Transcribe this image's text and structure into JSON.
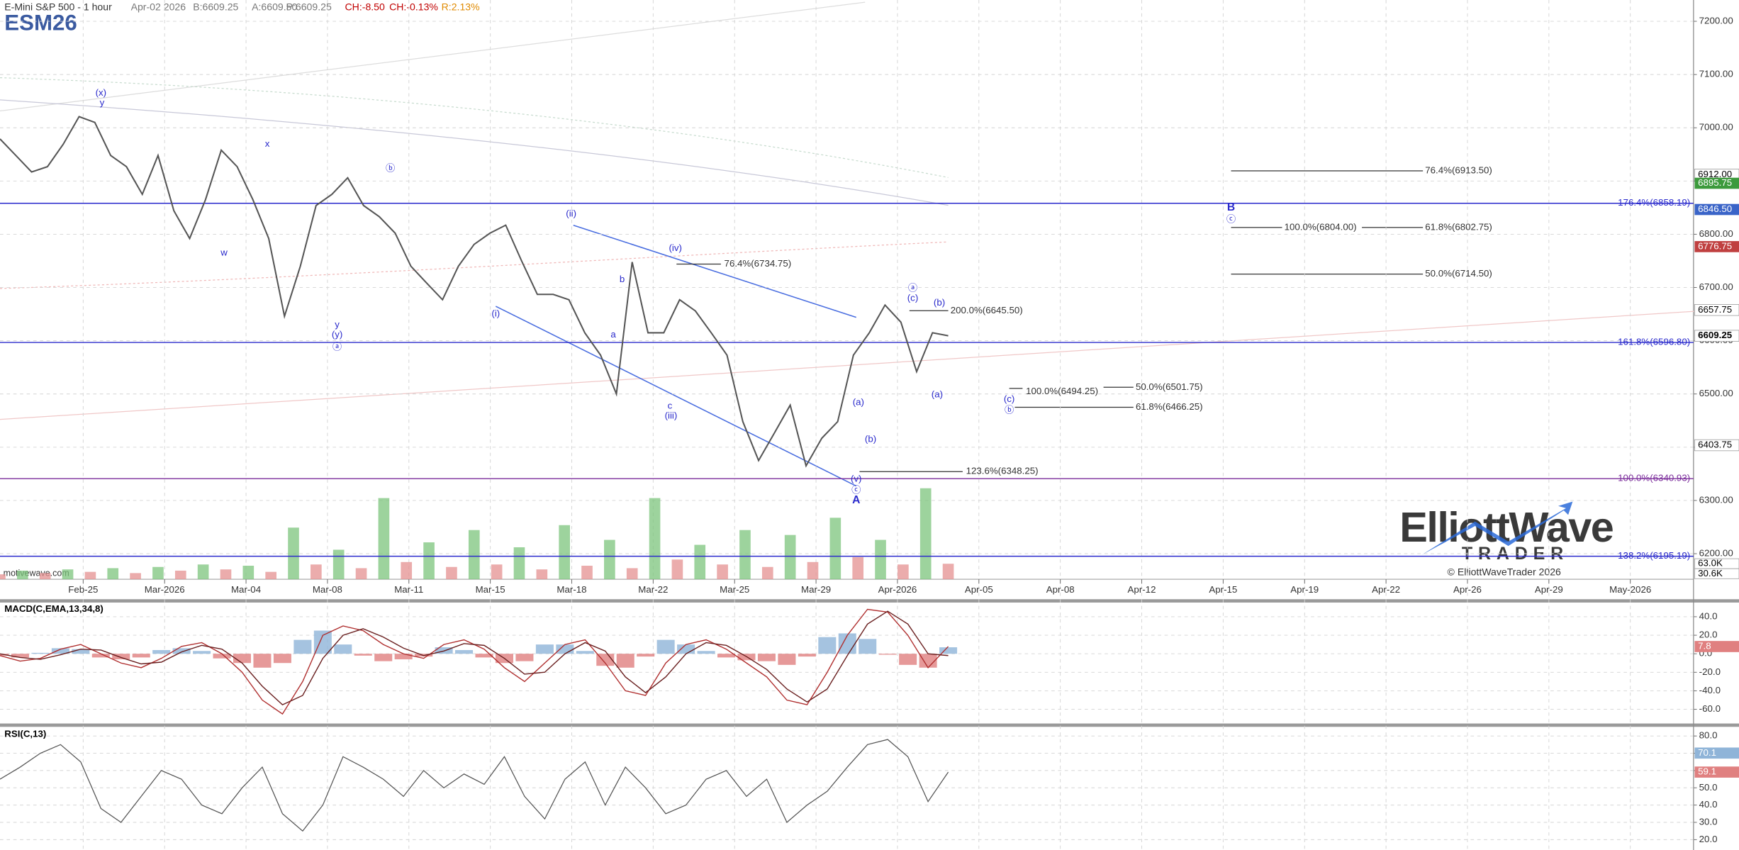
{
  "header": {
    "title": "E-Mini S&P 500 - 1 hour",
    "date": "Apr-02 2026",
    "bid": "B:6609.25",
    "ask": "A:6609.50",
    "price": "P:6609.25",
    "change": "CH:-8.50",
    "change_pct": "CH:-0.13%",
    "range": "R:2.13%",
    "symbol": "ESM26"
  },
  "footer": {
    "source": "motivewave.com",
    "copyright": "© ElliottWaveTrader 2026",
    "logo_top": "ElliottWave",
    "logo_bottom": "TRADER"
  },
  "chart_data": [
    {
      "type": "line",
      "x_labels": [
        "Feb-25",
        "Mar-2026",
        "Mar-04",
        "Mar-08",
        "Mar-11",
        "Mar-15",
        "Mar-18",
        "Mar-22",
        "Mar-25",
        "Mar-29",
        "Apr-2026",
        "Apr-05",
        "Apr-08",
        "Apr-12",
        "Apr-15",
        "Apr-19",
        "Apr-22",
        "Apr-26",
        "Apr-29",
        "May-2026"
      ],
      "series": [
        {
          "color": "#555555",
          "values": [
            6979,
            6948,
            6917,
            6927,
            6969,
            7021,
            7010,
            6948,
            6927,
            6875,
            6948,
            6844,
            6792,
            6865,
            6958,
            6927,
            6865,
            6792,
            6646,
            6740,
            6854,
            6875,
            6906,
            6854,
            6833,
            6802,
            6740,
            6708,
            6677,
            6740,
            6781,
            6802,
            6817,
            6750,
            6687,
            6687,
            6677,
            6615,
            6573,
            6500,
            6748,
            6615,
            6615,
            6677,
            6656,
            6615,
            6573,
            6448,
            6375,
            6427,
            6479,
            6365,
            6417,
            6448,
            6573,
            6615,
            6667,
            6635,
            6542,
            6615,
            6609.25
          ]
        }
      ],
      "ylim": [
        6152,
        7240
      ],
      "yticks": [
        {
          "value": 7200,
          "label": "7200.00"
        },
        {
          "value": 7100,
          "label": "7100.00"
        },
        {
          "value": 7000,
          "label": "7000.00"
        },
        {
          "value": 6900,
          "label": "6900.00"
        },
        {
          "value": 6800,
          "label": "6800.00"
        },
        {
          "value": 6700,
          "label": "6700.00"
        },
        {
          "value": 6600,
          "label": "6600.00"
        },
        {
          "value": 6500,
          "label": "6500.00"
        },
        {
          "value": 6400,
          "label": "6400.00"
        },
        {
          "value": 6300,
          "label": "6300.00"
        },
        {
          "value": 6200,
          "label": "6200.00"
        }
      ],
      "grid": true,
      "levels": [
        {
          "value": 6858.19,
          "label": "176.4%(6858.19)",
          "color": "#2a2acc"
        },
        {
          "value": 6596.8,
          "label": "161.8%(6596.80)",
          "color": "#2a2acc"
        },
        {
          "value": 6340.93,
          "label": "100.0%(6340.93)",
          "color": "#7b2d9b"
        },
        {
          "value": 6195.19,
          "label": "138.2%(6195.19)",
          "color": "#2a2acc"
        }
      ],
      "price_markers": [
        {
          "value": 6912,
          "label": "6912.00",
          "color": "#ffffff"
        },
        {
          "value": 6895.75,
          "label": "6895.75",
          "color": "#3c9a3c"
        },
        {
          "value": 6846.5,
          "label": "6846.50",
          "color": "#3a64c8"
        },
        {
          "value": 6776.75,
          "label": "6776.75",
          "color": "#c04040"
        },
        {
          "value": 6657.75,
          "label": "6657.75",
          "color": "#ffffff"
        },
        {
          "value": 6609.25,
          "label": "6609.25",
          "color": "#ffffff"
        },
        {
          "value": 6403.75,
          "label": "6403.75",
          "color": "#ffffff"
        }
      ],
      "volume": {
        "ylim": [
          0,
          370
        ],
        "values": [
          20,
          35,
          25,
          40,
          30,
          45,
          25,
          50,
          35,
          60,
          40,
          55,
          30,
          210,
          60,
          120,
          45,
          330,
          70,
          150,
          50,
          200,
          60,
          130,
          40,
          220,
          55,
          160,
          45,
          330,
          80,
          140,
          60,
          200,
          50,
          180,
          70,
          250,
          90,
          160,
          60,
          370,
          63.0
        ],
        "markers": [
          {
            "value": 63.0,
            "label": "63.0K"
          },
          {
            "value": 30.6,
            "label": "30.6K"
          }
        ],
        "up_color": "#7cc47c",
        "down_color": "#e49090"
      },
      "annotations": [
        "(x)",
        "y",
        "x",
        "w",
        "ⓑ",
        "y",
        "(y)",
        "ⓐ",
        "(ii)",
        "(i)",
        "b",
        "a",
        "(iv)",
        "c",
        "(iii)",
        "ⓐ",
        "(c)",
        "(b)",
        "(a)",
        "(a)",
        "(b)",
        "(v)",
        "ⓒ",
        "A",
        "B",
        "ⓒ",
        "(c)",
        "ⓑ",
        "76.4%(6734.75)",
        "200.0%(6645.50)",
        "123.6%(6348.25)",
        "100.0%(6494.25)",
        "50.0%(6501.75)",
        "61.8%(6466.25)",
        "76.4%(6913.50)",
        "100.0%(6804.00)",
        "61.8%(6802.75)",
        "50.0%(6714.50)"
      ]
    },
    {
      "type": "macd",
      "title": "MACD(C,EMA,13,34,8)",
      "ylim": [
        -75.3,
        55.3
      ],
      "yticks": [
        {
          "value": 40,
          "label": "40.0"
        },
        {
          "value": 20,
          "label": "20.0"
        },
        {
          "value": 0,
          "label": "0.0"
        },
        {
          "value": -20,
          "label": "-20.0"
        },
        {
          "value": -40,
          "label": "-40.0"
        },
        {
          "value": -60,
          "label": "-60.0"
        }
      ],
      "series": [
        {
          "color": "#b03030",
          "values": [
            -2,
            -8,
            -5,
            5,
            10,
            0,
            -10,
            -15,
            -5,
            8,
            12,
            0,
            -20,
            -50,
            -65,
            -30,
            20,
            30,
            25,
            10,
            0,
            -5,
            10,
            15,
            5,
            -15,
            -30,
            -10,
            10,
            15,
            -10,
            -40,
            -45,
            -10,
            10,
            15,
            5,
            -10,
            -25,
            -50,
            -55,
            -20,
            20,
            48,
            45,
            20,
            -15,
            7.8
          ]
        },
        {
          "color": "#6a2020",
          "values": [
            0,
            -4,
            -6,
            -1,
            5,
            4,
            -4,
            -11,
            -9,
            2,
            9,
            5,
            -10,
            -35,
            -55,
            -45,
            -5,
            20,
            27,
            18,
            6,
            -2,
            3,
            11,
            9,
            -5,
            -22,
            -20,
            0,
            12,
            3,
            -25,
            -42,
            -25,
            0,
            12,
            9,
            -3,
            -17,
            -38,
            -52,
            -38,
            -2,
            32,
            46,
            32,
            0,
            -2
          ]
        }
      ],
      "histogram": {
        "pos_color": "#8fb4d8",
        "neg_color": "#e08080",
        "values": [
          -2,
          -4,
          1,
          6,
          5,
          -4,
          -6,
          -4,
          4,
          6,
          3,
          -5,
          -10,
          -15,
          -10,
          15,
          25,
          10,
          -2,
          -8,
          -6,
          -3,
          7,
          4,
          -4,
          -10,
          -8,
          10,
          10,
          3,
          -13,
          -15,
          -3,
          15,
          10,
          3,
          -4,
          -7,
          -8,
          -12,
          -3,
          18,
          22,
          16,
          -1,
          -12,
          -15,
          7
        ]
      },
      "markers": [
        {
          "value": 7.8,
          "label": "7.8",
          "color": "#e08080"
        }
      ]
    },
    {
      "type": "rsi",
      "title": "RSI(C,13)",
      "ylim": [
        14,
        85.3
      ],
      "yticks": [
        {
          "value": 80,
          "label": "80.0"
        },
        {
          "value": 70,
          "label": "70.0"
        },
        {
          "value": 60,
          "label": "60.0"
        },
        {
          "value": 50,
          "label": "50.0"
        },
        {
          "value": 40,
          "label": "40.0"
        },
        {
          "value": 30,
          "label": "30.0"
        },
        {
          "value": 20,
          "label": "20.0"
        }
      ],
      "series": [
        {
          "color": "#555555",
          "values": [
            55,
            62,
            70,
            75,
            65,
            38,
            30,
            45,
            60,
            55,
            40,
            35,
            50,
            62,
            35,
            25,
            40,
            68,
            62,
            55,
            45,
            60,
            50,
            58,
            52,
            68,
            45,
            32,
            55,
            65,
            40,
            62,
            50,
            35,
            40,
            55,
            60,
            45,
            55,
            30,
            40,
            48,
            62,
            75,
            78,
            68,
            42,
            59.1
          ]
        }
      ],
      "markers": [
        {
          "value": 70.1,
          "label": "70.1",
          "color": "#8fb4d8"
        },
        {
          "value": 59.1,
          "label": "59.1",
          "color": "#e08080"
        }
      ]
    }
  ]
}
